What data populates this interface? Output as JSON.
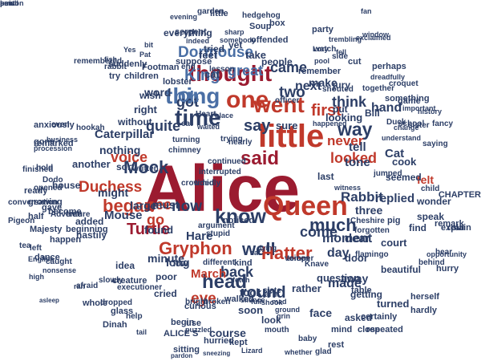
{
  "palette": {
    "dark_red": "#9b1b30",
    "red": "#c0392b",
    "navy": "#2c3e66",
    "blue": "#4a6fa5",
    "grey": "#8a8f98",
    "light_grey": "#b9bcc2"
  },
  "words": [
    {
      "text": "Alice",
      "c": "dark_red"
    },
    {
      "text": "little",
      "c": "red"
    },
    {
      "text": "Queen",
      "c": "red"
    },
    {
      "text": "went",
      "c": "red"
    },
    {
      "text": "one",
      "c": "red"
    },
    {
      "text": "time",
      "c": "navy"
    },
    {
      "text": "thought",
      "c": "dark_red"
    },
    {
      "text": "thing",
      "c": "blue"
    },
    {
      "text": "know",
      "c": "navy"
    },
    {
      "text": "said",
      "c": "dark_red"
    },
    {
      "text": "way",
      "c": "navy"
    },
    {
      "text": "head",
      "c": "navy"
    },
    {
      "text": "well",
      "c": "navy"
    },
    {
      "text": "Hatter",
      "c": "red"
    },
    {
      "text": "Gryphon",
      "c": "red"
    },
    {
      "text": "Mock",
      "c": "navy"
    },
    {
      "text": "Turtle",
      "c": "dark_red"
    },
    {
      "text": "King",
      "c": "blue"
    },
    {
      "text": "began",
      "c": "red"
    },
    {
      "text": "see",
      "c": "red"
    },
    {
      "text": "much",
      "c": "navy"
    },
    {
      "text": "say",
      "c": "navy"
    },
    {
      "text": "first",
      "c": "red"
    },
    {
      "text": "quite",
      "c": "navy"
    },
    {
      "text": "Dormouse",
      "c": "blue"
    },
    {
      "text": "came",
      "c": "navy"
    },
    {
      "text": "voice",
      "c": "red"
    },
    {
      "text": "Duchess",
      "c": "red"
    },
    {
      "text": "round",
      "c": "navy"
    },
    {
      "text": "back",
      "c": "navy"
    },
    {
      "text": "go",
      "c": "red"
    },
    {
      "text": "now",
      "c": "navy"
    },
    {
      "text": "come",
      "c": "navy"
    },
    {
      "text": "great",
      "c": "blue"
    },
    {
      "text": "think",
      "c": "navy"
    },
    {
      "text": "looked",
      "c": "red"
    },
    {
      "text": "Rabbit",
      "c": "navy"
    },
    {
      "text": "never",
      "c": "red"
    },
    {
      "text": "got",
      "c": "navy"
    },
    {
      "text": "Oh",
      "c": "blue"
    },
    {
      "text": "two",
      "c": "navy"
    },
    {
      "text": "next",
      "c": "navy"
    },
    {
      "text": "make",
      "c": "navy"
    },
    {
      "text": "tone",
      "c": "navy"
    },
    {
      "text": "day",
      "c": "navy"
    },
    {
      "text": "eye",
      "c": "red"
    },
    {
      "text": "March",
      "c": "red"
    },
    {
      "text": "Hare",
      "c": "navy"
    },
    {
      "text": "long",
      "c": "navy"
    },
    {
      "text": "made",
      "c": "navy"
    },
    {
      "text": "moment",
      "c": "navy"
    },
    {
      "text": "dear",
      "c": "navy"
    },
    {
      "text": "away",
      "c": "navy"
    },
    {
      "text": "hand",
      "c": "navy"
    },
    {
      "text": "tell",
      "c": "navy"
    },
    {
      "text": "felt",
      "c": "red"
    },
    {
      "text": "replied",
      "c": "navy"
    },
    {
      "text": "three",
      "c": "navy"
    },
    {
      "text": "Caterpillar",
      "c": "navy"
    },
    {
      "text": "Cat",
      "c": "navy"
    },
    {
      "text": "large",
      "c": "navy"
    },
    {
      "text": "nothing",
      "c": "navy"
    },
    {
      "text": "might",
      "c": "navy"
    },
    {
      "text": "must",
      "c": "navy"
    },
    {
      "text": "minute",
      "c": "navy"
    },
    {
      "text": "found",
      "c": "navy"
    },
    {
      "text": "Mouse",
      "c": "navy"
    },
    {
      "text": "another",
      "c": "navy"
    },
    {
      "text": "Soup",
      "c": "navy"
    },
    {
      "text": "Dinah",
      "c": "navy"
    },
    {
      "text": "question",
      "c": "navy"
    },
    {
      "text": "door",
      "c": "navy"
    },
    {
      "text": "face",
      "c": "navy"
    },
    {
      "text": "Bill",
      "c": "navy"
    },
    {
      "text": "soon",
      "c": "navy"
    },
    {
      "text": "look",
      "c": "navy"
    },
    {
      "text": "rather",
      "c": "navy"
    },
    {
      "text": "took",
      "c": "navy"
    },
    {
      "text": "course",
      "c": "navy"
    },
    {
      "text": "sure",
      "c": "navy"
    },
    {
      "text": "take",
      "c": "navy"
    },
    {
      "text": "cat",
      "c": "navy"
    },
    {
      "text": "turned",
      "c": "navy"
    },
    {
      "text": "looking",
      "c": "navy"
    },
    {
      "text": "cook",
      "c": "navy"
    },
    {
      "text": "jury",
      "c": "navy"
    },
    {
      "text": "put",
      "c": "navy"
    },
    {
      "text": "getting",
      "c": "navy"
    },
    {
      "text": "pig",
      "c": "navy"
    },
    {
      "text": "find",
      "c": "navy"
    },
    {
      "text": "court",
      "c": "navy"
    },
    {
      "text": "beautiful",
      "c": "navy"
    },
    {
      "text": "hurry",
      "c": "navy"
    },
    {
      "text": "herself",
      "c": "navy"
    },
    {
      "text": "hardly",
      "c": "navy"
    },
    {
      "text": "seemed",
      "c": "navy"
    },
    {
      "text": "speak",
      "c": "navy"
    },
    {
      "text": "wonder",
      "c": "navy"
    },
    {
      "text": "sort",
      "c": "navy"
    },
    {
      "text": "word",
      "c": "navy"
    },
    {
      "text": "wish",
      "c": "navy"
    },
    {
      "text": "right",
      "c": "navy"
    },
    {
      "text": "without",
      "c": "navy"
    },
    {
      "text": "house",
      "c": "navy"
    },
    {
      "text": "added",
      "c": "navy"
    },
    {
      "text": "last",
      "c": "navy"
    },
    {
      "text": "yet",
      "c": "navy"
    },
    {
      "text": "hastily",
      "c": "navy"
    },
    {
      "text": "creature",
      "c": "navy"
    },
    {
      "text": "curious",
      "c": "navy"
    },
    {
      "text": "begin",
      "c": "navy"
    },
    {
      "text": "use",
      "c": "navy"
    },
    {
      "text": "poor",
      "c": "navy"
    },
    {
      "text": "idea",
      "c": "navy"
    },
    {
      "text": "cried",
      "c": "navy"
    },
    {
      "text": "asked",
      "c": "navy"
    },
    {
      "text": "certainly",
      "c": "navy"
    },
    {
      "text": "feet",
      "c": "navy"
    },
    {
      "text": "tried",
      "c": "navy"
    },
    {
      "text": "everything",
      "c": "navy"
    },
    {
      "text": "dance",
      "c": "navy"
    },
    {
      "text": "happen",
      "c": "navy"
    },
    {
      "text": "Majesty",
      "c": "navy"
    },
    {
      "text": "beginning",
      "c": "navy"
    },
    {
      "text": "half",
      "c": "navy"
    },
    {
      "text": "left",
      "c": "navy"
    },
    {
      "text": "Pigeon",
      "c": "navy"
    },
    {
      "text": "conversation",
      "c": "navy"
    },
    {
      "text": "growing",
      "c": "navy"
    },
    {
      "text": "suddenly",
      "c": "navy"
    },
    {
      "text": "Footman",
      "c": "navy"
    },
    {
      "text": "anxiously",
      "c": "navy"
    },
    {
      "text": "remarked",
      "c": "navy"
    },
    {
      "text": "finished",
      "c": "navy"
    },
    {
      "text": "hold",
      "c": "navy"
    },
    {
      "text": "try",
      "c": "navy"
    },
    {
      "text": "children",
      "c": "navy"
    },
    {
      "text": "serpent",
      "c": "navy"
    },
    {
      "text": "garden",
      "c": "navy"
    },
    {
      "text": "little",
      "c": "navy"
    },
    {
      "text": "hedgehog",
      "c": "navy"
    },
    {
      "text": "box",
      "c": "navy"
    },
    {
      "text": "fan",
      "c": "navy"
    },
    {
      "text": "offended",
      "c": "navy"
    },
    {
      "text": "party",
      "c": "navy"
    },
    {
      "text": "trembling",
      "c": "navy"
    },
    {
      "text": "remember",
      "c": "navy"
    },
    {
      "text": "people",
      "c": "navy"
    },
    {
      "text": "cut",
      "c": "navy"
    },
    {
      "text": "perhaps",
      "c": "navy"
    },
    {
      "text": "something",
      "c": "navy"
    },
    {
      "text": "game",
      "c": "navy"
    },
    {
      "text": "sister",
      "c": "navy"
    },
    {
      "text": "saying",
      "c": "navy"
    },
    {
      "text": "child",
      "c": "navy"
    },
    {
      "text": "CHAPTER",
      "c": "navy"
    },
    {
      "text": "explain",
      "c": "navy"
    },
    {
      "text": "remark",
      "c": "navy"
    },
    {
      "text": "read",
      "c": "navy"
    },
    {
      "text": "afraid",
      "c": "navy"
    },
    {
      "text": "whole",
      "c": "navy"
    },
    {
      "text": "glass",
      "c": "navy"
    },
    {
      "text": "ALICE S",
      "c": "navy"
    },
    {
      "text": "sitting",
      "c": "navy"
    },
    {
      "text": "hurried",
      "c": "navy"
    },
    {
      "text": "mind",
      "c": "navy"
    },
    {
      "text": "repeated",
      "c": "navy"
    },
    {
      "text": "rest",
      "c": "navy"
    },
    {
      "text": "close",
      "c": "navy"
    },
    {
      "text": "glad",
      "c": "navy"
    },
    {
      "text": "whether",
      "c": "navy"
    },
    {
      "text": "kept",
      "c": "navy"
    },
    {
      "text": "walked",
      "c": "navy"
    },
    {
      "text": "broken",
      "c": "navy"
    },
    {
      "text": "silence",
      "c": "navy"
    },
    {
      "text": "kind",
      "c": "navy"
    },
    {
      "text": "voices",
      "c": "navy"
    },
    {
      "text": "low",
      "c": "navy"
    },
    {
      "text": "different",
      "c": "navy"
    },
    {
      "text": "noticed",
      "c": "navy"
    },
    {
      "text": "shouted",
      "c": "navy"
    },
    {
      "text": "together",
      "c": "navy"
    },
    {
      "text": "croquet",
      "c": "navy"
    },
    {
      "text": "table",
      "c": "navy"
    },
    {
      "text": "baby",
      "c": "navy"
    },
    {
      "text": "school",
      "c": "navy"
    },
    {
      "text": "Duck",
      "c": "navy"
    },
    {
      "text": "Knave",
      "c": "navy"
    },
    {
      "text": "witness",
      "c": "navy"
    },
    {
      "text": "gone",
      "c": "navy"
    },
    {
      "text": "become",
      "c": "navy"
    },
    {
      "text": "ready",
      "c": "navy"
    },
    {
      "text": "gave",
      "c": "navy"
    },
    {
      "text": "tree",
      "c": "navy"
    },
    {
      "text": "even",
      "c": "navy"
    },
    {
      "text": "end",
      "c": "navy"
    },
    {
      "text": "lesson",
      "c": "navy"
    },
    {
      "text": "watch",
      "c": "navy"
    },
    {
      "text": "side",
      "c": "navy"
    },
    {
      "text": "Lory",
      "c": "navy"
    },
    {
      "text": "pool",
      "c": "navy"
    },
    {
      "text": "window",
      "c": "navy"
    },
    {
      "text": "fell",
      "c": "navy"
    },
    {
      "text": "suppose",
      "c": "navy"
    },
    {
      "text": "lobster",
      "c": "navy"
    },
    {
      "text": "waited",
      "c": "navy"
    },
    {
      "text": "place",
      "c": "navy"
    },
    {
      "text": "understand",
      "c": "navy"
    },
    {
      "text": "important",
      "c": "navy"
    },
    {
      "text": "change",
      "c": "navy"
    },
    {
      "text": "fancy",
      "c": "navy"
    },
    {
      "text": "history",
      "c": "navy"
    },
    {
      "text": "procession",
      "c": "navy"
    },
    {
      "text": "business",
      "c": "navy"
    },
    {
      "text": "Heart",
      "c": "navy"
    },
    {
      "text": "officer",
      "c": "navy"
    },
    {
      "text": "flamingo",
      "c": "navy"
    },
    {
      "text": "behind",
      "c": "navy"
    },
    {
      "text": "happened",
      "c": "navy"
    },
    {
      "text": "hear",
      "c": "navy"
    },
    {
      "text": "asleep",
      "c": "navy"
    },
    {
      "text": "tea",
      "c": "navy"
    },
    {
      "text": "caught",
      "c": "navy"
    },
    {
      "text": "hookah",
      "c": "navy"
    },
    {
      "text": "Adventure",
      "c": "navy"
    },
    {
      "text": "remembered",
      "c": "navy"
    },
    {
      "text": "turning",
      "c": "navy"
    },
    {
      "text": "eat",
      "c": "navy"
    },
    {
      "text": "trying",
      "c": "navy"
    },
    {
      "text": "nearly",
      "c": "navy"
    },
    {
      "text": "opportunity",
      "c": "navy"
    },
    {
      "text": "chimney",
      "c": "navy"
    },
    {
      "text": "interrupted",
      "c": "navy"
    },
    {
      "text": "continued",
      "c": "navy"
    },
    {
      "text": "timidly",
      "c": "navy"
    },
    {
      "text": "crowded",
      "c": "navy"
    },
    {
      "text": "bright",
      "c": "navy"
    },
    {
      "text": "puzzled",
      "c": "navy"
    },
    {
      "text": "shook",
      "c": "navy"
    },
    {
      "text": "help",
      "c": "navy"
    },
    {
      "text": "tail",
      "c": "navy"
    },
    {
      "text": "mouth",
      "c": "navy"
    },
    {
      "text": "pardon",
      "c": "navy"
    },
    {
      "text": "sneezing",
      "c": "navy"
    },
    {
      "text": "Lizard",
      "c": "navy"
    },
    {
      "text": "Cheshire",
      "c": "navy"
    },
    {
      "text": "forgotten",
      "c": "navy"
    },
    {
      "text": "argument",
      "c": "navy"
    },
    {
      "text": "stupid",
      "c": "navy"
    },
    {
      "text": "dropped",
      "c": "navy"
    },
    {
      "text": "slowly",
      "c": "navy"
    },
    {
      "text": "lying",
      "c": "navy"
    },
    {
      "text": "sat",
      "c": "navy"
    },
    {
      "text": "fish",
      "c": "navy"
    },
    {
      "text": "Yes",
      "c": "navy"
    },
    {
      "text": "bit",
      "c": "navy"
    },
    {
      "text": "Pat",
      "c": "navy"
    },
    {
      "text": "sharp",
      "c": "navy"
    },
    {
      "text": "somebody",
      "c": "navy"
    },
    {
      "text": "exclaimed",
      "c": "navy"
    },
    {
      "text": "dreadfully",
      "c": "navy"
    },
    {
      "text": "written",
      "c": "navy"
    },
    {
      "text": "opened",
      "c": "navy"
    },
    {
      "text": "Dodo",
      "c": "navy"
    },
    {
      "text": "jumped",
      "c": "navy"
    },
    {
      "text": "arm",
      "c": "navy"
    },
    {
      "text": "slate",
      "c": "navy"
    },
    {
      "text": "full",
      "c": "navy"
    },
    {
      "text": "mad",
      "c": "navy"
    },
    {
      "text": "temper",
      "c": "navy"
    },
    {
      "text": "grin",
      "c": "navy"
    },
    {
      "text": "ground",
      "c": "navy"
    },
    {
      "text": "English",
      "c": "navy"
    },
    {
      "text": "nonsense",
      "c": "navy"
    },
    {
      "text": "high",
      "c": "navy"
    },
    {
      "text": "indeed",
      "c": "navy"
    },
    {
      "text": "executioner",
      "c": "navy"
    },
    {
      "text": "evening",
      "c": "navy"
    },
    {
      "text": "rabbit",
      "c": "navy"
    },
    {
      "text": "fetch",
      "c": "navy"
    },
    {
      "text": "ran",
      "c": "navy"
    },
    {
      "text": "best",
      "c": "navy"
    },
    {
      "text": "small",
      "c": "navy"
    },
    {
      "text": "poison",
      "c": "navy"
    },
    {
      "text": "paw",
      "c": "navy"
    }
  ]
}
